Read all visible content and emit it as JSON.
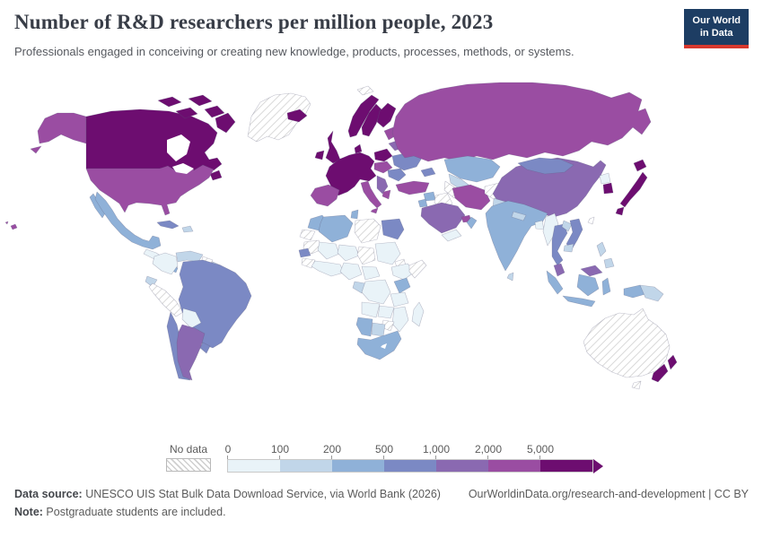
{
  "header": {
    "title": "Number of R&D researchers per million people, 2023",
    "subtitle": "Professionals engaged in conceiving or creating new knowledge, products, processes, methods, or systems.",
    "logo_line1": "Our World",
    "logo_line2": "in Data"
  },
  "chart_data": {
    "type": "choropleth-map",
    "title": "Number of R&D researchers per million people, 2023",
    "unit": "R&D researchers per million people",
    "year": "2023",
    "legend": {
      "no_data_label": "No data",
      "tick_labels": [
        "0",
        "100",
        "200",
        "500",
        "1,000",
        "2,000",
        "5,000"
      ],
      "bin_colors": [
        "#e9f3f8",
        "#c1d6e9",
        "#8fb1d8",
        "#7b89c4",
        "#8a69b1",
        "#9a4da2",
        "#6d0d70"
      ],
      "bin_ranges": [
        "0-100",
        "100-200",
        "200-500",
        "500-1,000",
        "1,000-2,000",
        "2,000-5,000",
        "5,000+"
      ],
      "no_data_style": "diagonal-hatch"
    },
    "country_bins": {
      "canada": 6,
      "canada-arctic-1": 6,
      "canada-arctic-2": 6,
      "canada-arctic-3": 6,
      "canada-arctic-4": 6,
      "baffin-island": 6,
      "newfoundland": 6,
      "alaska": 5,
      "usa": 5,
      "hawaii": 5,
      "mexico": 2,
      "baja-california": 2,
      "central-america": 0,
      "costa-rica-panama": 2,
      "cuba": 3,
      "hispaniola": 1,
      "colombia": 0,
      "venezuela": 1,
      "guyana": "no-data",
      "suriname": 1,
      "ecuador": 1,
      "peru": "no-data",
      "brazil": 3,
      "bolivia": 0,
      "paraguay": 1,
      "chile": 3,
      "argentina": 4,
      "uruguay": 3,
      "greenland": "no-data",
      "iceland": 6,
      "svalbard": "no-data",
      "norway": 6,
      "sweden": 6,
      "finland": 6,
      "denmark": 6,
      "uk": 6,
      "ireland": 6,
      "west-europe": 6,
      "poland": 6,
      "central-europe": 5,
      "baltics": 5,
      "iberia": 5,
      "italy": 5,
      "sicily": 5,
      "belarus": 4,
      "ukraine": 3,
      "romania-bulgaria": 3,
      "balkans": 4,
      "greece": 5,
      "turkey": 5,
      "caucasus": 3,
      "russia": 5,
      "kazakhstan": 2,
      "uzbekistan": 1,
      "turkmenistan": "no-data",
      "syria": 2,
      "jordan-israel": 2,
      "iraq": "no-data",
      "iran": 5,
      "afghanistan": "no-data",
      "pakistan": 1,
      "saudi-arabia": 4,
      "uae": 5,
      "oman": 2,
      "yemen": 0,
      "morocco": 2,
      "western-sahara": "no-data",
      "algeria": 2,
      "tunisia": 2,
      "libya": "no-data",
      "egypt": 3,
      "mauritania": "no-data",
      "mali": 0,
      "niger": 0,
      "chad": "no-data",
      "sudan": 0,
      "eritrea": "no-data",
      "ethiopia": 0,
      "somalia": "no-data",
      "senegal": 3,
      "guinea": "no-data",
      "west-africa": 0,
      "nigeria": 0,
      "cameroon": 0,
      "gabon-congo": 1,
      "drc": 0,
      "kenya": 2,
      "tanzania": 0,
      "angola": 0,
      "zambia": 0,
      "mozambique": 0,
      "zimbabwe": "no-data",
      "namibia": 2,
      "botswana": 1,
      "south-africa": 2,
      "madagascar": 0,
      "india": 2,
      "nepal": 1,
      "bangladesh": 0,
      "sri-lanka": 1,
      "myanmar": 0,
      "thailand": 3,
      "laos": 1,
      "vietnam": 3,
      "cambodia": 1,
      "malaysia-west": 4,
      "malaysia-borneo": 4,
      "sumatra": 2,
      "java": 2,
      "kalimantan": 2,
      "sulawesi": 2,
      "papua-west": 2,
      "papua-new-guinea": 1,
      "luzon": 1,
      "mindanao": 1,
      "china": 4,
      "mongolia": 3,
      "north-korea": 0,
      "south-korea": 6,
      "japan-hokkaido": 6,
      "japan-honshu": 6,
      "japan-kyushu": 6,
      "taiwan": "no-data",
      "australia": "no-data",
      "tasmania": "no-data",
      "nz-north": 6,
      "nz-south": 6
    }
  },
  "map_style": {
    "ocean": "#ffffff",
    "hatch_line": "#cfcfcf"
  },
  "footer": {
    "source_bold": "Data source:",
    "source_text": " UNESCO UIS Stat Bulk Data Download Service, via World Bank (2026)",
    "attribution": "OurWorldinData.org/research-and-development | CC BY",
    "note_bold": "Note:",
    "note_text": " Postgraduate students are included."
  }
}
